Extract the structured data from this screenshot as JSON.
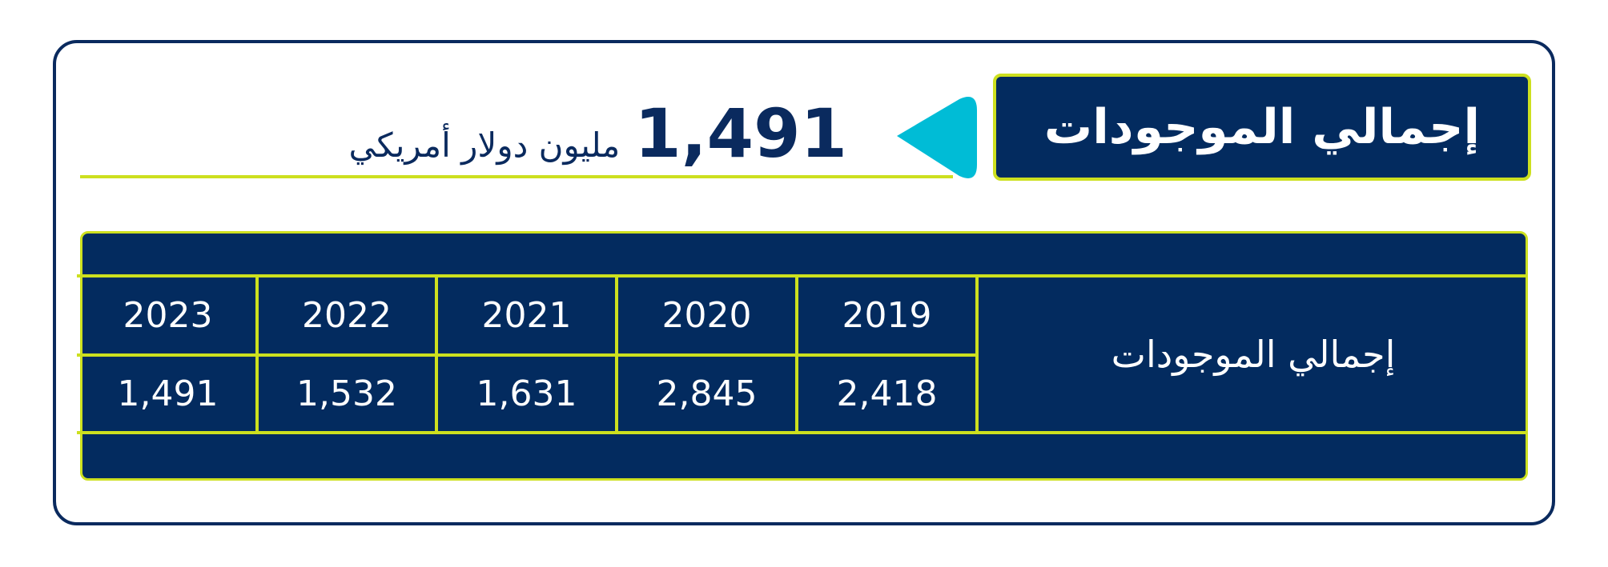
{
  "title": "إجمالي الموجودات",
  "headline": {
    "value": "1,491",
    "unit": "مليون دولار أمريكي"
  },
  "table": {
    "row_label": "إجمالي الموجودات",
    "years": [
      "2023",
      "2022",
      "2021",
      "2020",
      "2019"
    ],
    "values": [
      "1,491",
      "1,532",
      "1,631",
      "2,845",
      "2,418"
    ]
  },
  "colors": {
    "navy": "#032b5f",
    "lime": "#cde01f",
    "cyan": "#00bcd6"
  }
}
